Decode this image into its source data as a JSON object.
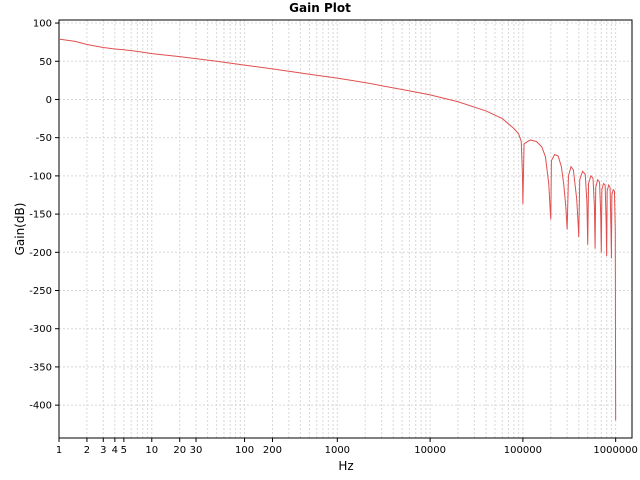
{
  "chart_data": {
    "type": "line",
    "title": "Gain Plot",
    "xlabel": "Hz",
    "ylabel": "Gain(dB)",
    "xscale": "log",
    "xlim": [
      1,
      1500000
    ],
    "ylim": [
      -443,
      104
    ],
    "grid": true,
    "legend": "none",
    "line_color": "#e05050",
    "grid_color": "#d8d8d8",
    "y_ticks": [
      100,
      50,
      0,
      -50,
      -100,
      -150,
      -200,
      -250,
      -300,
      -350,
      -400
    ],
    "y_tick_labels": [
      "100",
      "50",
      "0",
      "-50",
      "-100",
      "-150",
      "-200",
      "-250",
      "-300",
      "-350",
      "-400"
    ],
    "x_ticks": [
      1,
      2,
      3,
      4,
      5,
      10,
      20,
      30,
      100,
      200,
      1000,
      10000,
      100000,
      1000000
    ],
    "x_tick_labels": [
      "1",
      "2",
      "3",
      "4",
      "5",
      "10",
      "20",
      "30",
      "100",
      "200",
      "1000",
      "10000",
      "100000",
      "1000000"
    ],
    "series": [
      {
        "x": [
          1,
          1.5,
          2,
          3,
          4,
          5,
          7,
          10,
          20,
          50,
          100,
          200,
          500,
          1000,
          2000,
          5000,
          10000,
          20000,
          40000,
          60000,
          80000,
          90000,
          96000,
          99000,
          100000,
          103000,
          120000,
          140000,
          160000,
          175000,
          190000,
          198000,
          200000,
          203000,
          220000,
          240000,
          260000,
          275000,
          290000,
          300000,
          310000,
          330000,
          350000,
          380000,
          395000,
          400000,
          410000,
          440000,
          470000,
          490000,
          500000,
          510000,
          540000,
          570000,
          590000,
          600000,
          610000,
          640000,
          670000,
          690000,
          700000,
          710000,
          740000,
          770000,
          790000,
          800000,
          810000,
          840000,
          870000,
          890000,
          900000,
          910000,
          940000,
          970000,
          990000,
          1000000
        ],
        "y": [
          79,
          76,
          72,
          68,
          66,
          65,
          63,
          60,
          56,
          50,
          45,
          40,
          33,
          28,
          22,
          13,
          6,
          -3,
          -15,
          -25,
          -38,
          -45,
          -55,
          -100,
          -137,
          -58,
          -53,
          -55,
          -62,
          -75,
          -110,
          -150,
          -157,
          -80,
          -72,
          -74,
          -88,
          -110,
          -140,
          -170,
          -100,
          -88,
          -92,
          -130,
          -165,
          -180,
          -105,
          -94,
          -98,
          -135,
          -190,
          -110,
          -100,
          -103,
          -140,
          -195,
          -115,
          -105,
          -108,
          -150,
          -200,
          -118,
          -110,
          -112,
          -160,
          -205,
          -120,
          -112,
          -115,
          -170,
          -208,
          -125,
          -118,
          -120,
          -170,
          -420
        ]
      }
    ]
  }
}
